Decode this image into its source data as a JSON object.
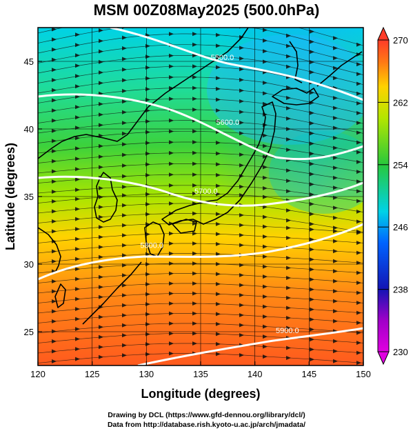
{
  "title": "MSM 00Z08May2025 (500.0hPa)",
  "footer": {
    "line1": "Drawing by DCL (https://www.gfd-dennou.org/library/dcl/)",
    "line2": "Data from http://database.rish.kyoto-u.ac.jp/arch/jmadata/"
  },
  "chart_data": {
    "type": "heatmap",
    "xlabel": "Longitude (degrees)",
    "ylabel": "Latitude (degrees)",
    "xlim": [
      120,
      150
    ],
    "ylim": [
      22.5,
      47.5
    ],
    "x_ticks": [
      120,
      125,
      130,
      135,
      140,
      145,
      150
    ],
    "y_ticks": [
      25,
      30,
      35,
      40,
      45
    ],
    "colorbar": {
      "min": 230,
      "max": 270,
      "ticks": [
        230,
        238,
        246,
        254,
        262,
        270
      ]
    },
    "contours": [
      {
        "label": "5500.0",
        "label_lon": 137,
        "label_lat": 45.1
      },
      {
        "label": "5600.0",
        "label_lon": 137.5,
        "label_lat": 40.3
      },
      {
        "label": "5700.0",
        "label_lon": 135.5,
        "label_lat": 35.2
      },
      {
        "label": "5800.0",
        "label_lon": 130.5,
        "label_lat": 31.2
      },
      {
        "label": "5900.0",
        "label_lon": 143,
        "label_lat": 24.9
      }
    ]
  }
}
